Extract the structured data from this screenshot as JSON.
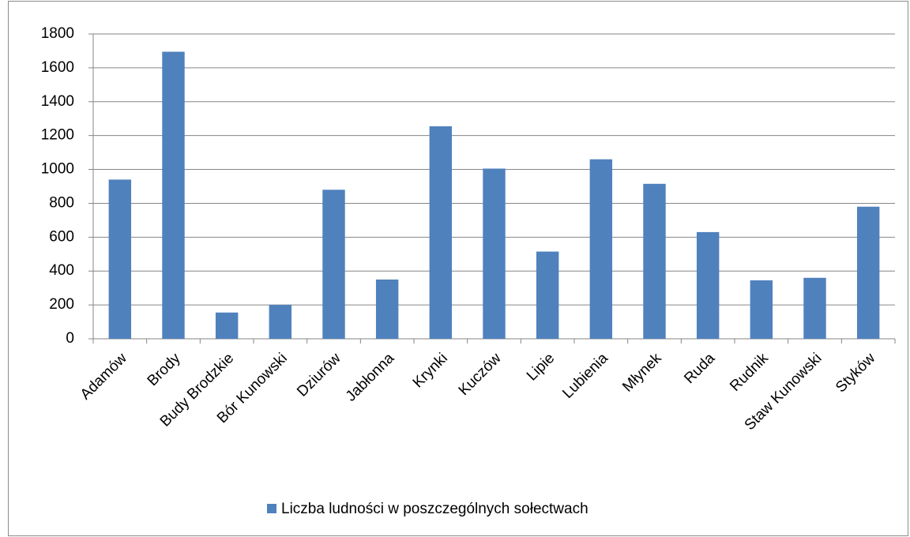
{
  "chart_data": {
    "type": "bar",
    "categories": [
      "Adamów",
      "Brody",
      "Budy Brodzkie",
      "Bór Kunowski",
      "Dziurów",
      "Jabłonna",
      "Krynki",
      "Kuczów",
      "Lipie",
      "Lubienia",
      "Młynek",
      "Ruda",
      "Rudnik",
      "Staw Kunowski",
      "Styków"
    ],
    "series": [
      {
        "name": "Liczba ludności w poszczególnych sołectwach",
        "color": "#4f81bd",
        "values": [
          940,
          1695,
          155,
          200,
          880,
          350,
          1255,
          1005,
          515,
          1060,
          915,
          630,
          345,
          360,
          780
        ]
      }
    ],
    "ylim": [
      0,
      1800
    ],
    "yticks": [
      0,
      200,
      400,
      600,
      800,
      1000,
      1200,
      1400,
      1600,
      1800
    ],
    "grid": true,
    "legend": "bottom"
  }
}
